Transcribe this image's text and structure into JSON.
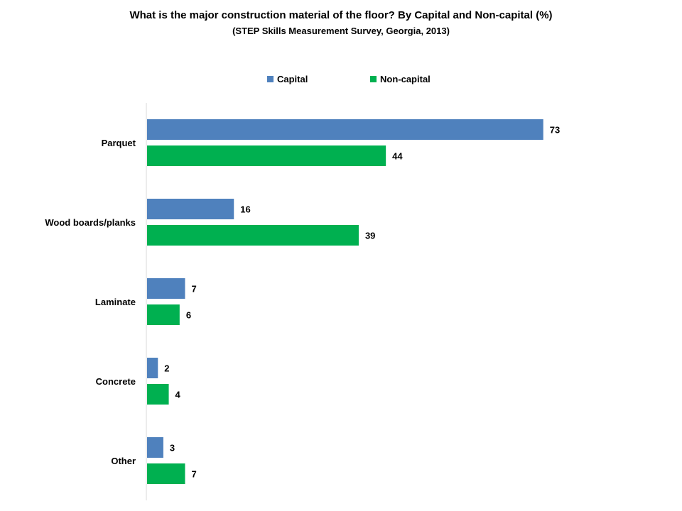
{
  "chart_data": {
    "type": "bar",
    "orientation": "horizontal",
    "title": "What is the major construction material of the floor? By Capital and Non-capital  (%)",
    "subtitle": "(STEP Skills Measurement Survey, Georgia, 2013)",
    "categories": [
      "Parquet",
      "Wood boards/planks",
      "Laminate",
      "Concrete",
      "Other"
    ],
    "series": [
      {
        "name": "Capital",
        "values": [
          73,
          16,
          7,
          2,
          3
        ],
        "color": "#4F81BD"
      },
      {
        "name": "Non-capital",
        "values": [
          44,
          39,
          6,
          4,
          7
        ],
        "color": "#00B050"
      }
    ],
    "xlim": [
      0,
      100
    ],
    "grid": false,
    "legend_position": "top",
    "data_labels": true
  }
}
